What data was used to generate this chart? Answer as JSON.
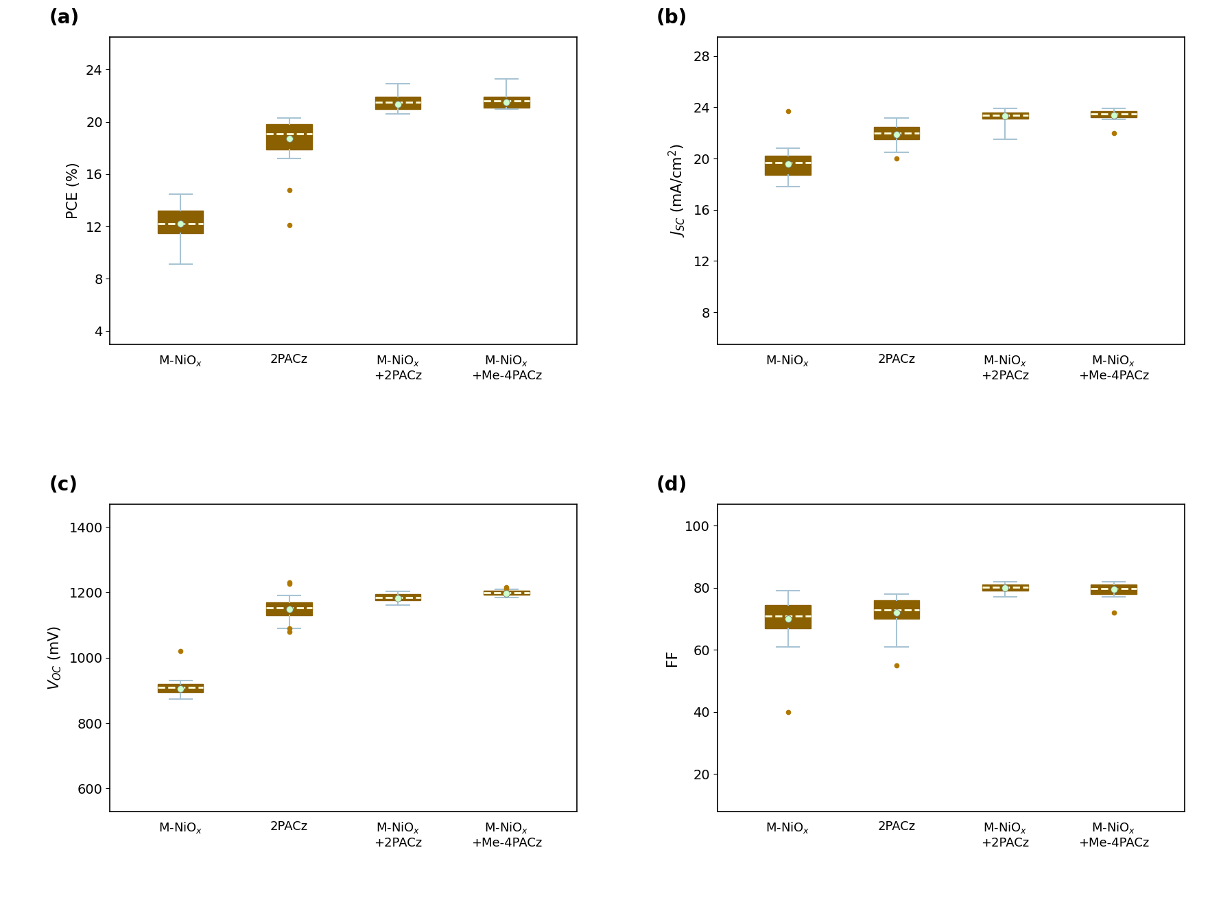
{
  "box_color": "#F5A800",
  "whisker_color": "#A8C4D4",
  "median_color": "#FFFFE0",
  "flier_color": "#B07800",
  "mean_dot_color": "#CCFFCC",
  "mean_dot_edge": "#777777",
  "box_edge_color": "#8B6000",
  "panel_labels": [
    "(a)",
    "(b)",
    "(c)",
    "(d)"
  ],
  "cat_labels": [
    "M-NiO$_x$",
    "2PACz",
    "M-NiO$_x$\n+2PACz",
    "M-NiO$_x$\n+Me-4PACz"
  ],
  "panels": [
    {
      "ylabel": "PCE (%)",
      "ylim": [
        3.0,
        26.5
      ],
      "yticks": [
        4,
        8,
        12,
        16,
        20,
        24
      ],
      "boxes": [
        {
          "q1": 11.5,
          "median": 12.2,
          "q3": 13.2,
          "mean": 12.2,
          "whislo": 9.1,
          "whishi": 14.5,
          "fliers": []
        },
        {
          "q1": 17.9,
          "median": 19.1,
          "q3": 19.8,
          "mean": 18.75,
          "whislo": 17.2,
          "whishi": 20.3,
          "fliers": [
            14.8,
            12.1
          ]
        },
        {
          "q1": 21.0,
          "median": 21.5,
          "q3": 21.9,
          "mean": 21.35,
          "whislo": 20.6,
          "whishi": 22.9,
          "fliers": []
        },
        {
          "q1": 21.1,
          "median": 21.6,
          "q3": 21.95,
          "mean": 21.5,
          "whislo": 21.0,
          "whishi": 23.3,
          "fliers": []
        }
      ]
    },
    {
      "ylabel": "$J_{SC}$ (mA/cm$^2$)",
      "ylim": [
        5.5,
        29.5
      ],
      "yticks": [
        8,
        12,
        16,
        20,
        24,
        28
      ],
      "boxes": [
        {
          "q1": 18.7,
          "median": 19.7,
          "q3": 20.2,
          "mean": 19.55,
          "whislo": 17.8,
          "whishi": 20.8,
          "fliers": [
            23.7
          ]
        },
        {
          "q1": 21.5,
          "median": 22.0,
          "q3": 22.45,
          "mean": 21.9,
          "whislo": 20.5,
          "whishi": 23.15,
          "fliers": [
            20.0
          ]
        },
        {
          "q1": 23.1,
          "median": 23.4,
          "q3": 23.6,
          "mean": 23.3,
          "whislo": 21.5,
          "whishi": 23.9,
          "fliers": []
        },
        {
          "q1": 23.2,
          "median": 23.5,
          "q3": 23.7,
          "mean": 23.4,
          "whislo": 23.05,
          "whishi": 23.9,
          "fliers": [
            22.0
          ]
        }
      ]
    },
    {
      "ylabel": "$V_{OC}$ (mV)",
      "ylim": [
        530,
        1470
      ],
      "yticks": [
        600,
        800,
        1000,
        1200,
        1400
      ],
      "boxes": [
        {
          "q1": 895,
          "median": 910,
          "q3": 920,
          "mean": 906,
          "whislo": 873,
          "whishi": 930,
          "fliers": [
            1020
          ]
        },
        {
          "q1": 1130,
          "median": 1153,
          "q3": 1170,
          "mean": 1148,
          "whislo": 1090,
          "whishi": 1190,
          "fliers": [
            1230,
            1225,
            1090,
            1080
          ]
        },
        {
          "q1": 1175,
          "median": 1185,
          "q3": 1195,
          "mean": 1182,
          "whislo": 1162,
          "whishi": 1202,
          "fliers": []
        },
        {
          "q1": 1192,
          "median": 1198,
          "q3": 1204,
          "mean": 1197,
          "whislo": 1185,
          "whishi": 1210,
          "fliers": [
            1215,
            1212
          ]
        }
      ]
    },
    {
      "ylabel": "FF",
      "ylim": [
        8,
        107
      ],
      "yticks": [
        20,
        40,
        60,
        80,
        100
      ],
      "boxes": [
        {
          "q1": 67,
          "median": 71,
          "q3": 74.5,
          "mean": 70,
          "whislo": 61,
          "whishi": 79,
          "fliers": [
            40
          ]
        },
        {
          "q1": 70,
          "median": 73,
          "q3": 76,
          "mean": 72,
          "whislo": 61,
          "whishi": 78,
          "fliers": [
            55
          ]
        },
        {
          "q1": 79,
          "median": 80.2,
          "q3": 81,
          "mean": 80,
          "whislo": 77,
          "whishi": 82,
          "fliers": []
        },
        {
          "q1": 78,
          "median": 79.8,
          "q3": 81,
          "mean": 79.5,
          "whislo": 77,
          "whishi": 82,
          "fliers": [
            72
          ]
        }
      ]
    }
  ]
}
